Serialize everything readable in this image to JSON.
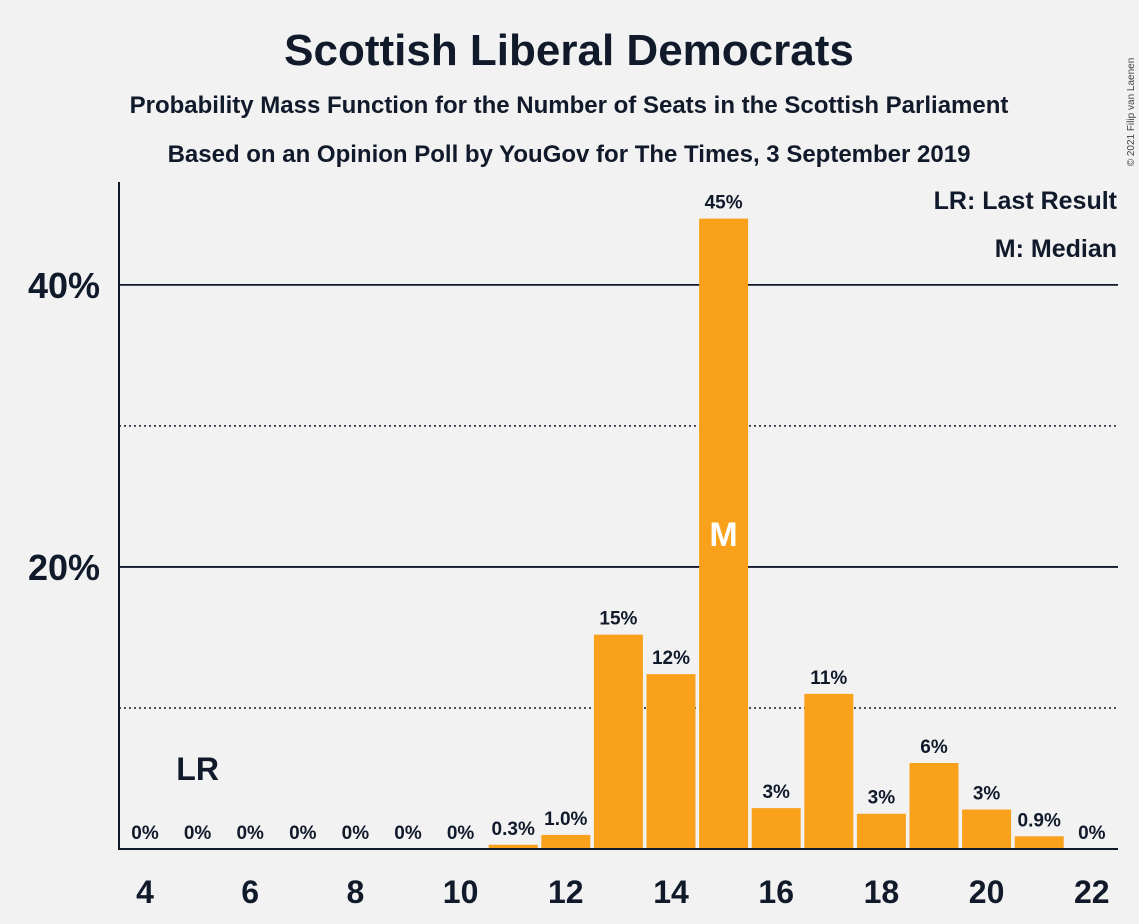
{
  "chart_data": {
    "type": "bar",
    "title": "Scottish Liberal Democrats",
    "subtitle_lines": [
      "Probability Mass Function for the Number of Seats in the Scottish Parliament",
      "Based on an Opinion Poll by YouGov for The Times, 3 September 2019"
    ],
    "credit": "© 2021 Filip van Laenen",
    "legend": [
      "LR: Last Result",
      "M: Median"
    ],
    "x": [
      4,
      5,
      6,
      7,
      8,
      9,
      10,
      11,
      12,
      13,
      14,
      15,
      16,
      17,
      18,
      19,
      20,
      21,
      22
    ],
    "values": [
      0,
      0,
      0,
      0,
      0,
      0,
      0,
      0.3,
      1.0,
      15.2,
      12.4,
      44.7,
      2.9,
      11.0,
      2.5,
      6.1,
      2.8,
      0.9,
      0
    ],
    "data_labels": [
      "0%",
      "0%",
      "0%",
      "0%",
      "0%",
      "0%",
      "0%",
      "0.3%",
      "1.0%",
      "15%",
      "12%",
      "45%",
      "3%",
      "11%",
      "3%",
      "6%",
      "3%",
      "0.9%",
      "0%"
    ],
    "x_tick_labels": [
      "4",
      "6",
      "8",
      "10",
      "12",
      "14",
      "16",
      "18",
      "20",
      "22"
    ],
    "x_tick_values": [
      4,
      6,
      8,
      10,
      12,
      14,
      16,
      18,
      20,
      22
    ],
    "y_tick_labels": [
      "20%",
      "40%"
    ],
    "y_tick_values": [
      20,
      40
    ],
    "y_gridlines_solid": [
      20,
      40
    ],
    "y_gridlines_dotted": [
      10,
      30
    ],
    "ylim": [
      0,
      48.5
    ],
    "last_result": {
      "seats": 5,
      "label": "LR"
    },
    "median": {
      "seats": 15,
      "label": "M"
    },
    "bar_color": "#f9a11b",
    "text_color": "#111a2b",
    "background": "#f2f2f2"
  }
}
